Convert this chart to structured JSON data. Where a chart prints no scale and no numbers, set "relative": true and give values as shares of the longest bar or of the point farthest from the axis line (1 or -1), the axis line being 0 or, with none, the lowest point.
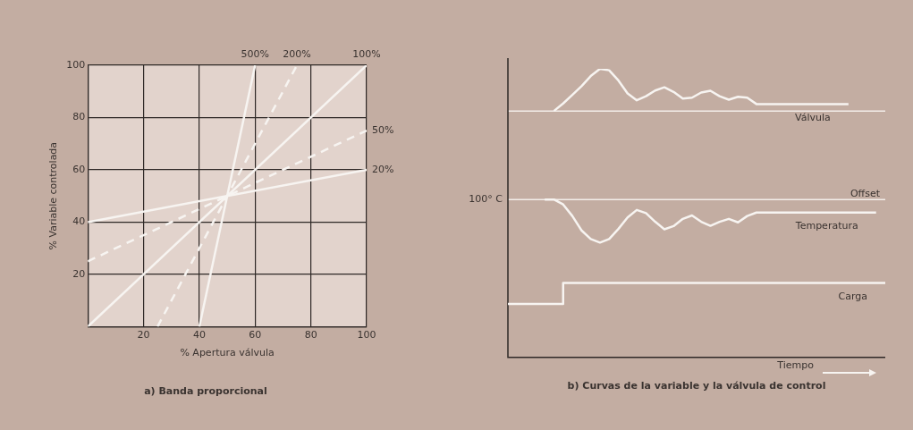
{
  "chart_data": [
    {
      "type": "line",
      "title": "a) Banda proporcional",
      "xlabel": "% Apertura válvula",
      "ylabel": "% Variable controlada",
      "xlim": [
        0,
        100
      ],
      "ylim": [
        0,
        100
      ],
      "xticks": [
        {
          "value": 0,
          "label": null
        },
        20,
        40,
        60,
        80,
        100
      ],
      "yticks": [
        {
          "value": 0,
          "label": null
        },
        20,
        40,
        60,
        80,
        100
      ],
      "grid": true,
      "legend": false,
      "series": [
        {
          "name": "500%",
          "color": "#f7f4f1",
          "x": [
            40,
            60
          ],
          "values": [
            0,
            100
          ],
          "line_style": "solid"
        },
        {
          "name": "200%",
          "color": "#f7f4f1",
          "x": [
            25,
            75
          ],
          "values": [
            0,
            100
          ],
          "line_style": "dashed"
        },
        {
          "name": "100%",
          "color": "#f7f4f1",
          "x": [
            0,
            100
          ],
          "values": [
            0,
            100
          ],
          "line_style": "solid"
        },
        {
          "name": "50%",
          "color": "#f7f4f1",
          "x": [
            0,
            100
          ],
          "values": [
            25,
            75
          ],
          "line_style": "dashed"
        },
        {
          "name": "20%",
          "color": "#f7f4f1",
          "x": [
            0,
            100
          ],
          "values": [
            40,
            60
          ],
          "line_style": "solid"
        }
      ]
    },
    {
      "type": "line",
      "relative": true,
      "title": "b) Curvas de la variable y la válvula de control",
      "xlabel": "Tiempo",
      "legend": false,
      "categories": [
        null,
        null,
        null,
        null,
        null,
        null,
        null,
        null,
        null,
        null,
        null,
        null,
        null,
        null,
        null,
        null,
        null,
        null,
        null,
        null,
        null,
        null,
        null,
        null,
        null,
        null,
        null,
        null,
        null,
        null,
        null,
        null,
        null,
        null,
        null,
        null,
        null,
        null,
        null,
        null,
        null,
        null
      ],
      "ref_lines": [
        {
          "axis": "y",
          "value": 0.854,
          "label": null,
          "color": "#f3eee9"
        },
        {
          "axis": "y",
          "value": 0.547,
          "label": "100° C",
          "color": "#f3eee9"
        }
      ],
      "annotations": [
        {
          "text": "Offset",
          "y": 0.547
        }
      ],
      "series": [
        {
          "name": "Válvula",
          "color": "#f7f4f1",
          "values": [
            null,
            null,
            null,
            null,
            null,
            0.854,
            0.88,
            0.91,
            0.94,
            0.975,
            1.0,
            0.995,
            0.96,
            0.915,
            0.891,
            0.905,
            0.925,
            0.936,
            0.92,
            0.897,
            0.9,
            0.918,
            0.924,
            0.905,
            0.893,
            0.903,
            0.9,
            0.878,
            0.878,
            0.878,
            0.878,
            0.878,
            0.878,
            0.878,
            0.878,
            0.878,
            0.878,
            0.878,
            null,
            null,
            null,
            null
          ]
        },
        {
          "name": "Temperatura",
          "color": "#f7f4f1",
          "values": [
            null,
            null,
            null,
            null,
            0.547,
            0.547,
            0.53,
            0.49,
            0.44,
            0.41,
            0.398,
            0.41,
            0.445,
            0.485,
            0.511,
            0.5,
            0.47,
            0.444,
            0.455,
            0.48,
            0.492,
            0.47,
            0.456,
            0.47,
            0.48,
            0.468,
            0.49,
            0.502,
            0.502,
            0.502,
            0.502,
            0.502,
            0.502,
            0.502,
            0.502,
            0.502,
            0.502,
            0.502,
            0.502,
            0.502,
            0.502,
            null
          ]
        },
        {
          "name": "Carga",
          "type": "step",
          "color": "#f7f4f1",
          "values": [
            0.185,
            0.185,
            0.185,
            0.185,
            0.185,
            0.185,
            0.258,
            0.258,
            0.258,
            0.258,
            0.258,
            0.258,
            0.258,
            0.258,
            0.258,
            0.258,
            0.258,
            0.258,
            0.258,
            0.258,
            0.258,
            0.258,
            0.258,
            0.258,
            0.258,
            0.258,
            0.258,
            0.258,
            0.258,
            0.258,
            0.258,
            0.258,
            0.258,
            0.258,
            0.258,
            0.258,
            0.258,
            0.258,
            0.258,
            0.258,
            0.258,
            0.258
          ]
        }
      ]
    }
  ]
}
